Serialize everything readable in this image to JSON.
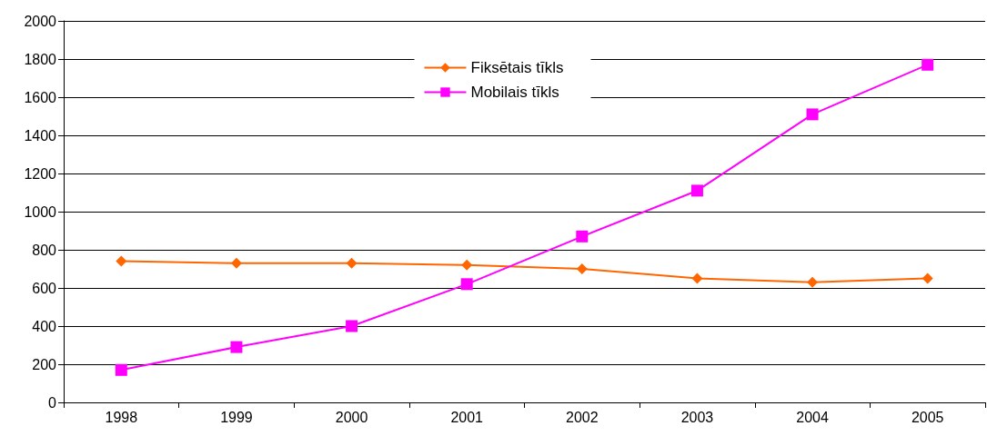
{
  "chart_data": {
    "type": "line",
    "categories": [
      "1998",
      "1999",
      "2000",
      "2001",
      "2002",
      "2003",
      "2004",
      "2005"
    ],
    "series": [
      {
        "name": "Fiksētais tīkls",
        "color": "#ff6600",
        "marker": "diamond",
        "values": [
          740,
          730,
          730,
          720,
          700,
          650,
          630,
          650
        ]
      },
      {
        "name": "Mobilais tīkls",
        "color": "#ff00ff",
        "marker": "square",
        "values": [
          170,
          290,
          400,
          620,
          870,
          1110,
          1510,
          1770
        ]
      }
    ],
    "ylim": [
      0,
      2000
    ],
    "yticks": [
      0,
      200,
      400,
      600,
      800,
      1000,
      1200,
      1400,
      1600,
      1800,
      2000
    ],
    "grid": "y",
    "legend": "top",
    "line_style": "solid"
  }
}
